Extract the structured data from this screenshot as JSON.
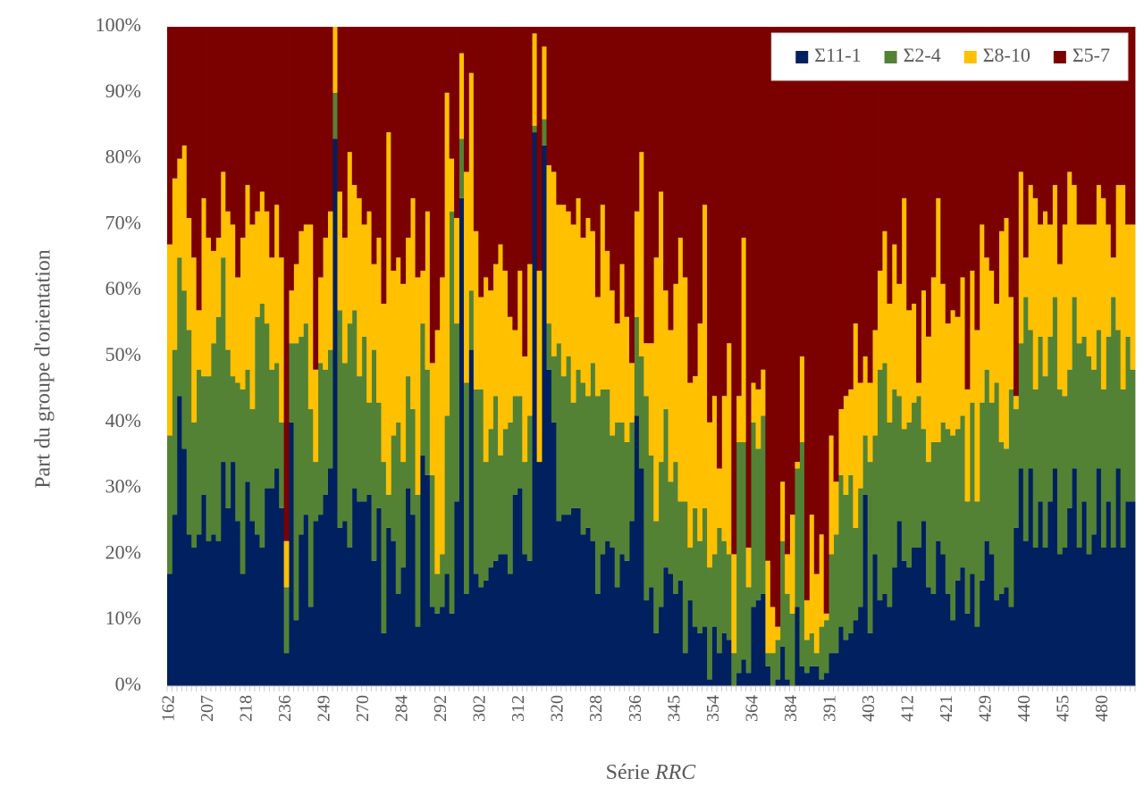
{
  "chart_data": {
    "type": "bar",
    "stacked": true,
    "y_label": "Part du groupe d'orientation",
    "x_label": [
      "Série",
      "RRC"
    ],
    "ylim": [
      0,
      100
    ],
    "yticks": [
      {
        "value": 0,
        "label": "0%"
      },
      {
        "value": 10,
        "label": "10%"
      },
      {
        "value": 20,
        "label": "20%"
      },
      {
        "value": 30,
        "label": "30%"
      },
      {
        "value": 40,
        "label": "40%"
      },
      {
        "value": 50,
        "label": "50%"
      },
      {
        "value": 60,
        "label": "60%"
      },
      {
        "value": 70,
        "label": "70%"
      },
      {
        "value": 80,
        "label": "80%"
      },
      {
        "value": 90,
        "label": "90%"
      },
      {
        "value": 100,
        "label": "100%"
      }
    ],
    "legend": "upper right",
    "categories": [
      "162",
      null,
      null,
      null,
      null,
      null,
      null,
      null,
      "207",
      null,
      null,
      null,
      null,
      null,
      null,
      null,
      "218",
      null,
      null,
      null,
      null,
      null,
      null,
      null,
      "236",
      null,
      null,
      null,
      null,
      null,
      null,
      null,
      "249",
      null,
      null,
      null,
      null,
      null,
      null,
      null,
      "270",
      null,
      null,
      null,
      null,
      null,
      null,
      null,
      "284",
      null,
      null,
      null,
      null,
      null,
      null,
      null,
      "292",
      null,
      null,
      null,
      null,
      null,
      null,
      null,
      "302",
      null,
      null,
      null,
      null,
      null,
      null,
      null,
      "312",
      null,
      null,
      null,
      null,
      null,
      null,
      null,
      "320",
      null,
      null,
      null,
      null,
      null,
      null,
      null,
      "328",
      null,
      null,
      null,
      null,
      null,
      null,
      null,
      "336",
      null,
      null,
      null,
      null,
      null,
      null,
      null,
      "345",
      null,
      null,
      null,
      null,
      null,
      null,
      null,
      "354",
      null,
      null,
      null,
      null,
      null,
      null,
      null,
      "364",
      null,
      null,
      null,
      null,
      null,
      null,
      null,
      "384",
      null,
      null,
      null,
      null,
      null,
      null,
      null,
      "391",
      null,
      null,
      null,
      null,
      null,
      null,
      null,
      "403",
      null,
      null,
      null,
      null,
      null,
      null,
      null,
      "412",
      null,
      null,
      null,
      null,
      null,
      null,
      null,
      "421",
      null,
      null,
      null,
      null,
      null,
      null,
      null,
      "429",
      null,
      null,
      null,
      null,
      null,
      null,
      null,
      "440",
      null,
      null,
      null,
      null,
      null,
      null,
      null,
      "455",
      null,
      null,
      null,
      null,
      null,
      null,
      null,
      "480",
      null,
      null,
      null,
      null,
      null,
      null
    ],
    "series": [
      {
        "name": "Σ11-1",
        "color": "#002060",
        "values": [
          17,
          26,
          44,
          36,
          23,
          21,
          23,
          29,
          22,
          23,
          22,
          34,
          27,
          34,
          25,
          17,
          31,
          25,
          23,
          21,
          30,
          30,
          33,
          27,
          5,
          40,
          10,
          23,
          26,
          12,
          25,
          26,
          29,
          33,
          83,
          24,
          25,
          21,
          30,
          28,
          28,
          29,
          19,
          27,
          8,
          24,
          22,
          14,
          18,
          30,
          26,
          9,
          35,
          32,
          12,
          11,
          12,
          17,
          11,
          28,
          74,
          14,
          51,
          17,
          15,
          16,
          18,
          19,
          20,
          20,
          17,
          29,
          30,
          20,
          19,
          84,
          34,
          82,
          48,
          40,
          25,
          26,
          26,
          27,
          27,
          23,
          24,
          22,
          14,
          20,
          22,
          21,
          15,
          20,
          19,
          25,
          41,
          33,
          13,
          15,
          8,
          12,
          18,
          17,
          14,
          16,
          5,
          13,
          9,
          8,
          9,
          1,
          9,
          5,
          8,
          7,
          0,
          2,
          4,
          2,
          12,
          13,
          14,
          3,
          0,
          1,
          6,
          1,
          0,
          12,
          3,
          2,
          3,
          3,
          1,
          2,
          5,
          5,
          9,
          7,
          8,
          10,
          12,
          29,
          8,
          20,
          13,
          14,
          12,
          18,
          25,
          19,
          18,
          21,
          21,
          25,
          15,
          14,
          22,
          20,
          14,
          10,
          16,
          18,
          11,
          17,
          9,
          16,
          22,
          20,
          13,
          14,
          15,
          12,
          24,
          33,
          22,
          33,
          21,
          28,
          21,
          28,
          33,
          20,
          21,
          27,
          33,
          21,
          28,
          20,
          23,
          33,
          21,
          28,
          21,
          33,
          21,
          28,
          28
        ]
      },
      {
        "name": "Σ2-4",
        "color": "#548235",
        "values": [
          21,
          25,
          21,
          24,
          31,
          19,
          25,
          18,
          25,
          29,
          34,
          31,
          24,
          13,
          21,
          28,
          17,
          17,
          33,
          37,
          25,
          18,
          16,
          13,
          10,
          12,
          42,
          30,
          29,
          30,
          9,
          23,
          19,
          18,
          7,
          33,
          24,
          34,
          27,
          19,
          25,
          14,
          32,
          16,
          26,
          5,
          16,
          26,
          16,
          17,
          16,
          20,
          20,
          16,
          20,
          6,
          8,
          24,
          61,
          27,
          9,
          32,
          9,
          28,
          30,
          18,
          21,
          25,
          15,
          19,
          23,
          15,
          14,
          14,
          22,
          1,
          0,
          4,
          7,
          10,
          27,
          21,
          24,
          16,
          21,
          23,
          20,
          27,
          30,
          25,
          23,
          17,
          25,
          20,
          18,
          15,
          15,
          17,
          31,
          20,
          17,
          22,
          24,
          14,
          20,
          12,
          23,
          8,
          18,
          14,
          18,
          17,
          11,
          19,
          14,
          13,
          5,
          35,
          33,
          13,
          28,
          23,
          27,
          2,
          5,
          6,
          16,
          13,
          11,
          21,
          34,
          5,
          5,
          2,
          8,
          8,
          15,
          18,
          23,
          22,
          24,
          14,
          18,
          9,
          26,
          18,
          35,
          35,
          28,
          27,
          19,
          20,
          22,
          22,
          23,
          14,
          19,
          23,
          15,
          20,
          25,
          28,
          23,
          23,
          17,
          26,
          19,
          27,
          26,
          23,
          33,
          23,
          21,
          33,
          18,
          19,
          37,
          21,
          24,
          25,
          26,
          25,
          26,
          25,
          23,
          21,
          26,
          31,
          25,
          30,
          25,
          21,
          24,
          25,
          38,
          21,
          24,
          25,
          20
        ]
      },
      {
        "name": "Σ8-10",
        "color": "#ffc000",
        "values": [
          29,
          26,
          15,
          22,
          17,
          25,
          9,
          27,
          21,
          14,
          12,
          13,
          21,
          23,
          16,
          23,
          28,
          28,
          16,
          17,
          17,
          17,
          24,
          25,
          7,
          8,
          12,
          16,
          15,
          28,
          14,
          13,
          20,
          21,
          10,
          18,
          19,
          26,
          19,
          27,
          17,
          29,
          13,
          25,
          24,
          55,
          25,
          25,
          27,
          21,
          32,
          33,
          8,
          24,
          17,
          37,
          42,
          49,
          8,
          16,
          13,
          32,
          33,
          24,
          14,
          28,
          21,
          20,
          32,
          24,
          16,
          10,
          19,
          16,
          23,
          14,
          29,
          11,
          24,
          28,
          21,
          26,
          22,
          27,
          26,
          22,
          27,
          20,
          15,
          28,
          21,
          22,
          15,
          24,
          19,
          9,
          16,
          31,
          8,
          17,
          40,
          41,
          18,
          23,
          27,
          40,
          34,
          25,
          20,
          33,
          46,
          22,
          24,
          9,
          22,
          32,
          15,
          7,
          31,
          6,
          6,
          9,
          7,
          14,
          7,
          2,
          9,
          6,
          15,
          1,
          13,
          6,
          18,
          12,
          14,
          1,
          18,
          8,
          10,
          15,
          13,
          31,
          16,
          12,
          12,
          16,
          15,
          20,
          18,
          22,
          17,
          35,
          17,
          15,
          2,
          21,
          19,
          25,
          37,
          21,
          16,
          19,
          17,
          21,
          17,
          20,
          26,
          27,
          17,
          20,
          12,
          32,
          35,
          14,
          2,
          26,
          6,
          22,
          29,
          17,
          25,
          17,
          17,
          19,
          26,
          30,
          17,
          18,
          17,
          20,
          22,
          22,
          29,
          17,
          6,
          22,
          31,
          17,
          22
        ]
      },
      {
        "name": "Σ5-7",
        "color": "#7b0000",
        "values": [
          33,
          23,
          20,
          18,
          29,
          35,
          43,
          26,
          32,
          34,
          32,
          22,
          28,
          30,
          38,
          32,
          24,
          30,
          28,
          25,
          28,
          35,
          27,
          35,
          78,
          40,
          36,
          31,
          30,
          30,
          52,
          38,
          32,
          28,
          0,
          25,
          32,
          19,
          24,
          26,
          30,
          28,
          36,
          32,
          42,
          16,
          37,
          35,
          39,
          32,
          26,
          38,
          37,
          28,
          51,
          46,
          38,
          10,
          20,
          29,
          4,
          22,
          7,
          31,
          41,
          38,
          40,
          36,
          33,
          37,
          44,
          46,
          37,
          50,
          36,
          1,
          37,
          3,
          21,
          22,
          27,
          27,
          28,
          30,
          26,
          32,
          29,
          31,
          41,
          27,
          34,
          40,
          45,
          36,
          44,
          51,
          28,
          19,
          48,
          48,
          35,
          25,
          40,
          46,
          39,
          32,
          38,
          54,
          53,
          45,
          27,
          60,
          56,
          67,
          56,
          48,
          80,
          56,
          32,
          79,
          54,
          55,
          52,
          81,
          88,
          91,
          69,
          80,
          74,
          66,
          50,
          87,
          74,
          83,
          77,
          89,
          62,
          69,
          58,
          56,
          55,
          45,
          54,
          50,
          54,
          46,
          37,
          31,
          42,
          33,
          39,
          26,
          43,
          42,
          54,
          40,
          47,
          38,
          26,
          39,
          45,
          43,
          44,
          38,
          55,
          37,
          46,
          30,
          35,
          37,
          42,
          31,
          29,
          41,
          56,
          22,
          35,
          24,
          26,
          30,
          28,
          30,
          24,
          36,
          30,
          22,
          24,
          30,
          30,
          30,
          30,
          24,
          26,
          30,
          35,
          24,
          24,
          30,
          30
        ]
      }
    ]
  }
}
